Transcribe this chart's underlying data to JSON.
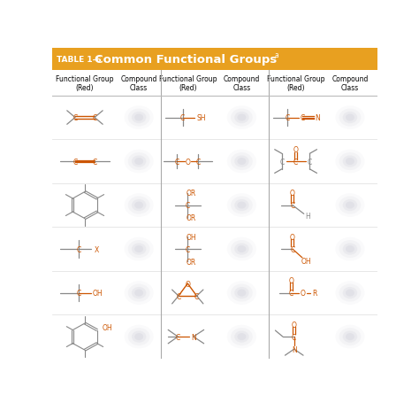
{
  "title_prefix": "TABLE 1-6",
  "title_main": "Common Functional Groups",
  "title_super": "a",
  "header_bg": "#E8A020",
  "red_color": "#CC5500",
  "gray_color": "#888888",
  "bg_color": "#FFFFFF",
  "col_headers": [
    "Functional Group\n(Red)",
    "Compound\nClass",
    "Functional Group\n(Red)",
    "Compound\nClass",
    "Functional Group\n(Red)",
    "Compound\nClass"
  ]
}
